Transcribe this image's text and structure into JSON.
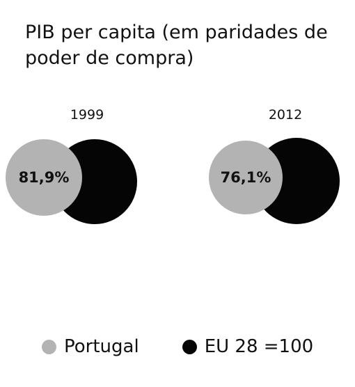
{
  "title": "PIB per capita (em paridades de poder de compra)",
  "colors": {
    "portugal": "#b3b3b3",
    "eu": "#050505"
  },
  "chart_data": [
    {
      "type": "pie",
      "year": "1999",
      "reference_series": "EU 28 =100",
      "reference_value": 100,
      "value": 81.9,
      "value_label": "81,9%",
      "series": "Portugal"
    },
    {
      "type": "pie",
      "year": "2012",
      "reference_series": "EU 28 =100",
      "reference_value": 100,
      "value": 76.1,
      "value_label": "76,1%",
      "series": "Portugal"
    }
  ],
  "legend": [
    {
      "label": "Portugal",
      "color": "#b3b3b3"
    },
    {
      "label": "EU 28 =100",
      "color": "#050505"
    }
  ]
}
